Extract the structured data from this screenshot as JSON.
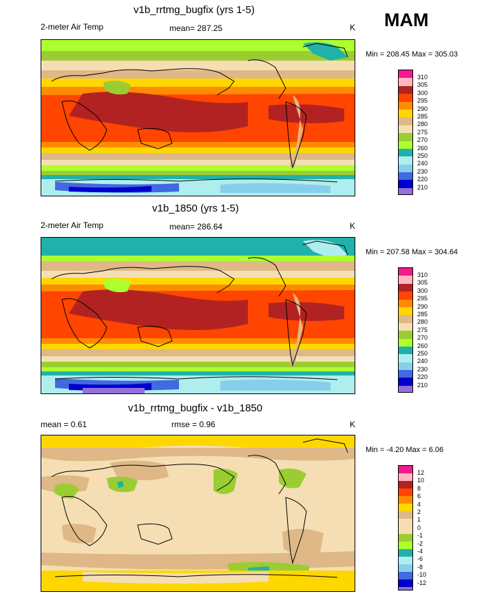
{
  "season": "MAM",
  "panels": [
    {
      "title": "v1b_rrtmg_bugfix (yrs 1-5)",
      "left": "2-meter Air Temp",
      "center": "mean= 287.25",
      "units": "K",
      "minmax": "Min = 208.45 Max = 305.03",
      "legend_labels": [
        "310",
        "305",
        "300",
        "295",
        "290",
        "285",
        "280",
        "275",
        "270",
        "260",
        "250",
        "240",
        "230",
        "220",
        "210"
      ]
    },
    {
      "title": "v1b_1850 (yrs 1-5)",
      "left": "2-meter Air Temp",
      "center": "mean= 286.64",
      "units": "K",
      "minmax": "Min = 207.58 Max = 304.64",
      "legend_labels": [
        "310",
        "305",
        "300",
        "295",
        "290",
        "285",
        "280",
        "275",
        "270",
        "260",
        "250",
        "240",
        "230",
        "220",
        "210"
      ]
    },
    {
      "title": "v1b_rrtmg_bugfix - v1b_1850",
      "left": "mean =   0.61",
      "center": "rmse =   0.96",
      "units": "K",
      "minmax": "Min =  -4.20 Max =   6.06",
      "legend_labels": [
        "12",
        "10",
        "8",
        "6",
        "4",
        "2",
        "1",
        "0",
        "-1",
        "-2",
        "-4",
        "-6",
        "-8",
        "-10",
        "-12"
      ]
    }
  ],
  "colors": {
    "abs_scale": [
      "#ee1c8c",
      "#ffb6c1",
      "#b22222",
      "#ff4500",
      "#ff8c00",
      "#ffd700",
      "#deb887",
      "#f5deb3",
      "#9acd32",
      "#adff2f",
      "#20b2aa",
      "#afeeee",
      "#87ceeb",
      "#4169e1",
      "#0000cd",
      "#9370db"
    ],
    "diff_scale": [
      "#ee1c8c",
      "#ffb6c1",
      "#b22222",
      "#ff4500",
      "#ff8c00",
      "#ffd700",
      "#deb887",
      "#f5deb3",
      "#f5deb3",
      "#9acd32",
      "#adff2f",
      "#20b2aa",
      "#afeeee",
      "#87ceeb",
      "#4169e1",
      "#0000cd",
      "#9370db"
    ]
  }
}
